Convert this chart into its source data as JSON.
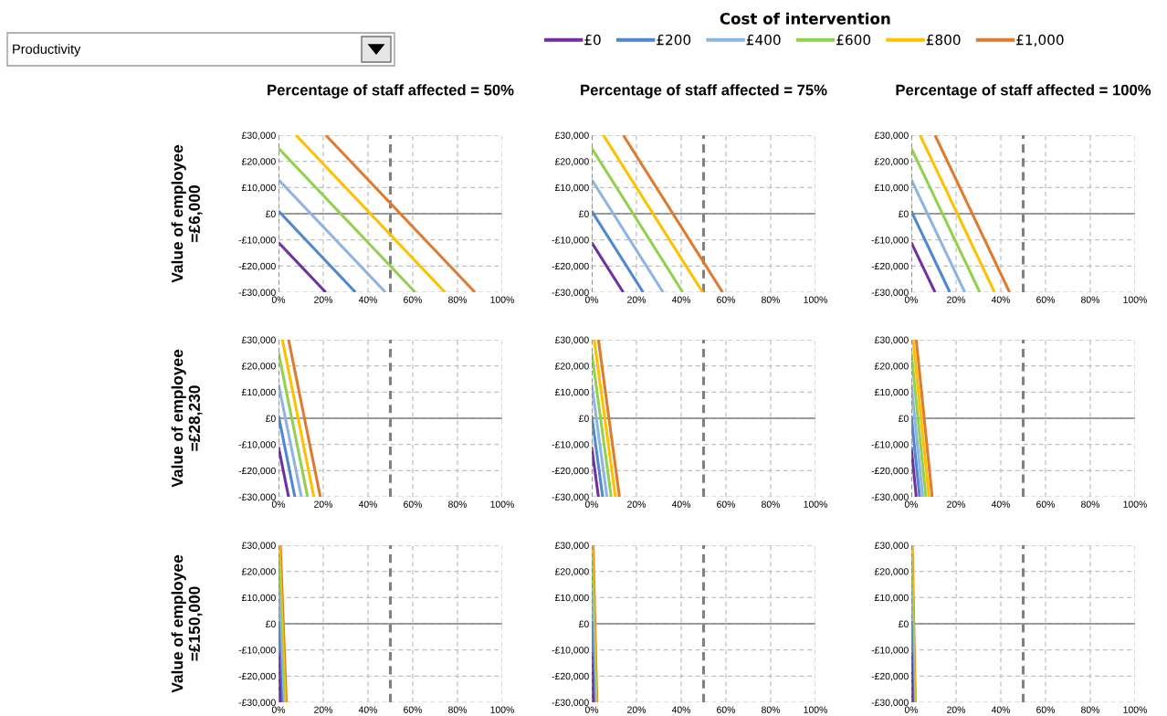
{
  "chart_data": [
    {
      "type": "line",
      "title": "Percentage of staff affected = 50%",
      "ylabel": "Value of employee\n=£6,000",
      "legend_title": "Cost of intervention",
      "legend": "top",
      "annotations": [
        "Productivity"
      ],
      "grid": true,
      "xlim": [
        0,
        100
      ],
      "ylim": [
        -30000,
        30000
      ],
      "xticks": [
        {
          "value": 0,
          "label": "0%"
        },
        {
          "value": 20,
          "label": "20%"
        },
        {
          "value": 40,
          "label": "40%"
        },
        {
          "value": 60,
          "label": "60%"
        },
        {
          "value": 80,
          "label": "80%"
        },
        {
          "value": 100,
          "label": "100%"
        }
      ],
      "yticks": [
        {
          "value": -30000,
          "label": "-£30,000"
        },
        {
          "value": -20000,
          "label": "-£20,000"
        },
        {
          "value": -10000,
          "label": "-£10,000"
        },
        {
          "value": 0,
          "label": "£0"
        },
        {
          "value": 10000,
          "label": "£10,000"
        },
        {
          "value": 20000,
          "label": "£20,000"
        },
        {
          "value": 30000,
          "label": "£30,000"
        }
      ],
      "ref_lines": [
        {
          "axis": "x",
          "value": 0,
          "color": "#808080",
          "line_style": "dashed"
        },
        {
          "axis": "x",
          "value": 50,
          "color": "#808080",
          "line_style": "dashed"
        }
      ],
      "series": [
        {
          "name": "£0",
          "color": "#7030a0",
          "x": [
            0,
            21.1
          ],
          "values": [
            -11000,
            -30000
          ]
        },
        {
          "name": "£200",
          "color": "#4f87d0",
          "x": [
            0,
            34.4
          ],
          "values": [
            1000,
            -30000
          ]
        },
        {
          "name": "£400",
          "color": "#8db4e2",
          "x": [
            0,
            47.8
          ],
          "values": [
            13000,
            -30000
          ]
        },
        {
          "name": "£600",
          "color": "#92d050",
          "x": [
            0,
            61.1
          ],
          "values": [
            25000,
            -30000
          ]
        },
        {
          "name": "£800",
          "color": "#ffc000",
          "x": [
            7.8,
            74.4
          ],
          "values": [
            30000,
            -30000
          ]
        },
        {
          "name": "£1,000",
          "color": "#dd7c31",
          "x": [
            21.1,
            87.8
          ],
          "values": [
            30000,
            -30000
          ]
        }
      ]
    },
    {
      "type": "line",
      "title": "Percentage of staff affected = 75%",
      "grid": true,
      "xlim": [
        0,
        100
      ],
      "ylim": [
        -30000,
        30000
      ],
      "xticks": [
        {
          "value": 0,
          "label": "0%"
        },
        {
          "value": 20,
          "label": "20%"
        },
        {
          "value": 40,
          "label": "40%"
        },
        {
          "value": 60,
          "label": "60%"
        },
        {
          "value": 80,
          "label": "80%"
        },
        {
          "value": 100,
          "label": "100%"
        }
      ],
      "yticks": [
        {
          "value": -30000,
          "label": "-£30,000"
        },
        {
          "value": -20000,
          "label": "-£20,000"
        },
        {
          "value": -10000,
          "label": "-£10,000"
        },
        {
          "value": 0,
          "label": "£0"
        },
        {
          "value": 10000,
          "label": "£10,000"
        },
        {
          "value": 20000,
          "label": "£20,000"
        },
        {
          "value": 30000,
          "label": "£30,000"
        }
      ],
      "ref_lines": [
        {
          "axis": "x",
          "value": 0,
          "color": "#808080",
          "line_style": "dashed"
        },
        {
          "axis": "x",
          "value": 50,
          "color": "#808080",
          "line_style": "dashed"
        }
      ],
      "series": [
        {
          "color": "#7030a0",
          "x": [
            0,
            14.1
          ],
          "values": [
            -11000,
            -30000
          ]
        },
        {
          "color": "#4f87d0",
          "x": [
            0,
            23.0
          ],
          "values": [
            1000,
            -30000
          ]
        },
        {
          "color": "#8db4e2",
          "x": [
            0,
            31.9
          ],
          "values": [
            13000,
            -30000
          ]
        },
        {
          "color": "#92d050",
          "x": [
            0,
            40.7
          ],
          "values": [
            25000,
            -30000
          ]
        },
        {
          "color": "#ffc000",
          "x": [
            5.2,
            49.6
          ],
          "values": [
            30000,
            -30000
          ]
        },
        {
          "color": "#dd7c31",
          "x": [
            14.1,
            58.5
          ],
          "values": [
            30000,
            -30000
          ]
        }
      ]
    },
    {
      "type": "line",
      "title": "Percentage of staff affected = 100%",
      "grid": true,
      "xlim": [
        0,
        100
      ],
      "ylim": [
        -30000,
        30000
      ],
      "xticks": [
        {
          "value": 0,
          "label": "0%"
        },
        {
          "value": 20,
          "label": "20%"
        },
        {
          "value": 40,
          "label": "40%"
        },
        {
          "value": 60,
          "label": "60%"
        },
        {
          "value": 80,
          "label": "80%"
        },
        {
          "value": 100,
          "label": "100%"
        }
      ],
      "yticks": [
        {
          "value": -30000,
          "label": "-£30,000"
        },
        {
          "value": -20000,
          "label": "-£20,000"
        },
        {
          "value": -10000,
          "label": "-£10,000"
        },
        {
          "value": 0,
          "label": "£0"
        },
        {
          "value": 10000,
          "label": "£10,000"
        },
        {
          "value": 20000,
          "label": "£20,000"
        },
        {
          "value": 30000,
          "label": "£30,000"
        }
      ],
      "ref_lines": [
        {
          "axis": "x",
          "value": 0,
          "color": "#808080",
          "line_style": "dashed"
        },
        {
          "axis": "x",
          "value": 50,
          "color": "#808080",
          "line_style": "dashed"
        }
      ],
      "series": [
        {
          "color": "#7030a0",
          "x": [
            0,
            10.6
          ],
          "values": [
            -11000,
            -30000
          ]
        },
        {
          "color": "#4f87d0",
          "x": [
            0,
            17.2
          ],
          "values": [
            1000,
            -30000
          ]
        },
        {
          "color": "#8db4e2",
          "x": [
            0,
            23.9
          ],
          "values": [
            13000,
            -30000
          ]
        },
        {
          "color": "#92d050",
          "x": [
            0,
            30.6
          ],
          "values": [
            25000,
            -30000
          ]
        },
        {
          "color": "#ffc000",
          "x": [
            3.9,
            37.2
          ],
          "values": [
            30000,
            -30000
          ]
        },
        {
          "color": "#dd7c31",
          "x": [
            10.6,
            43.9
          ],
          "values": [
            30000,
            -30000
          ]
        }
      ]
    },
    {
      "type": "line",
      "ylabel": "Value of employee\n=£28,230",
      "grid": true,
      "xlim": [
        0,
        100
      ],
      "ylim": [
        -30000,
        30000
      ],
      "xticks": [
        {
          "value": 0,
          "label": "0%"
        },
        {
          "value": 20,
          "label": "20%"
        },
        {
          "value": 40,
          "label": "40%"
        },
        {
          "value": 60,
          "label": "60%"
        },
        {
          "value": 80,
          "label": "80%"
        },
        {
          "value": 100,
          "label": "100%"
        }
      ],
      "yticks": [
        {
          "value": -30000,
          "label": "-£30,000"
        },
        {
          "value": -20000,
          "label": "-£20,000"
        },
        {
          "value": -10000,
          "label": "-£10,000"
        },
        {
          "value": 0,
          "label": "£0"
        },
        {
          "value": 10000,
          "label": "£10,000"
        },
        {
          "value": 20000,
          "label": "£20,000"
        },
        {
          "value": 30000,
          "label": "£30,000"
        }
      ],
      "ref_lines": [
        {
          "axis": "x",
          "value": 0,
          "color": "#808080",
          "line_style": "dashed"
        },
        {
          "axis": "x",
          "value": 50,
          "color": "#808080",
          "line_style": "dashed"
        }
      ],
      "series": [
        {
          "color": "#7030a0",
          "x": [
            0,
            4.5
          ],
          "values": [
            -11000,
            -30000
          ]
        },
        {
          "color": "#4f87d0",
          "x": [
            0,
            7.3
          ],
          "values": [
            1000,
            -30000
          ]
        },
        {
          "color": "#8db4e2",
          "x": [
            0,
            10.2
          ],
          "values": [
            13000,
            -30000
          ]
        },
        {
          "color": "#92d050",
          "x": [
            0,
            13.0
          ],
          "values": [
            25000,
            -30000
          ]
        },
        {
          "color": "#ffc000",
          "x": [
            1.7,
            15.8
          ],
          "values": [
            30000,
            -30000
          ]
        },
        {
          "color": "#dd7c31",
          "x": [
            4.5,
            18.7
          ],
          "values": [
            30000,
            -30000
          ]
        }
      ]
    },
    {
      "type": "line",
      "grid": true,
      "xlim": [
        0,
        100
      ],
      "ylim": [
        -30000,
        30000
      ],
      "xticks": [
        {
          "value": 0,
          "label": "0%"
        },
        {
          "value": 20,
          "label": "20%"
        },
        {
          "value": 40,
          "label": "40%"
        },
        {
          "value": 60,
          "label": "60%"
        },
        {
          "value": 80,
          "label": "80%"
        },
        {
          "value": 100,
          "label": "100%"
        }
      ],
      "yticks": [
        {
          "value": -30000,
          "label": "-£30,000"
        },
        {
          "value": -20000,
          "label": "-£20,000"
        },
        {
          "value": -10000,
          "label": "-£10,000"
        },
        {
          "value": 0,
          "label": "£0"
        },
        {
          "value": 10000,
          "label": "£10,000"
        },
        {
          "value": 20000,
          "label": "£20,000"
        },
        {
          "value": 30000,
          "label": "£30,000"
        }
      ],
      "ref_lines": [
        {
          "axis": "x",
          "value": 0,
          "color": "#808080",
          "line_style": "dashed"
        },
        {
          "axis": "x",
          "value": 50,
          "color": "#808080",
          "line_style": "dashed"
        }
      ],
      "series": [
        {
          "color": "#7030a0",
          "x": [
            0,
            3.0
          ],
          "values": [
            -11000,
            -30000
          ]
        },
        {
          "color": "#4f87d0",
          "x": [
            0,
            4.9
          ],
          "values": [
            1000,
            -30000
          ]
        },
        {
          "color": "#8db4e2",
          "x": [
            0,
            6.8
          ],
          "values": [
            13000,
            -30000
          ]
        },
        {
          "color": "#92d050",
          "x": [
            0,
            8.7
          ],
          "values": [
            25000,
            -30000
          ]
        },
        {
          "color": "#ffc000",
          "x": [
            1.1,
            10.6
          ],
          "values": [
            30000,
            -30000
          ]
        },
        {
          "color": "#dd7c31",
          "x": [
            3.0,
            12.4
          ],
          "values": [
            30000,
            -30000
          ]
        }
      ]
    },
    {
      "type": "line",
      "grid": true,
      "xlim": [
        0,
        100
      ],
      "ylim": [
        -30000,
        30000
      ],
      "xticks": [
        {
          "value": 0,
          "label": "0%"
        },
        {
          "value": 20,
          "label": "20%"
        },
        {
          "value": 40,
          "label": "40%"
        },
        {
          "value": 60,
          "label": "60%"
        },
        {
          "value": 80,
          "label": "80%"
        },
        {
          "value": 100,
          "label": "100%"
        }
      ],
      "yticks": [
        {
          "value": -30000,
          "label": "-£30,000"
        },
        {
          "value": -20000,
          "label": "-£20,000"
        },
        {
          "value": -10000,
          "label": "-£10,000"
        },
        {
          "value": 0,
          "label": "£0"
        },
        {
          "value": 10000,
          "label": "£10,000"
        },
        {
          "value": 20000,
          "label": "£20,000"
        },
        {
          "value": 30000,
          "label": "£30,000"
        }
      ],
      "ref_lines": [
        {
          "axis": "x",
          "value": 0,
          "color": "#808080",
          "line_style": "dashed"
        },
        {
          "axis": "x",
          "value": 50,
          "color": "#808080",
          "line_style": "dashed"
        }
      ],
      "series": [
        {
          "color": "#7030a0",
          "x": [
            0,
            2.2
          ],
          "values": [
            -11000,
            -30000
          ]
        },
        {
          "color": "#4f87d0",
          "x": [
            0,
            3.7
          ],
          "values": [
            1000,
            -30000
          ]
        },
        {
          "color": "#8db4e2",
          "x": [
            0,
            5.1
          ],
          "values": [
            13000,
            -30000
          ]
        },
        {
          "color": "#92d050",
          "x": [
            0,
            6.5
          ],
          "values": [
            25000,
            -30000
          ]
        },
        {
          "color": "#ffc000",
          "x": [
            0.8,
            7.9
          ],
          "values": [
            30000,
            -30000
          ]
        },
        {
          "color": "#dd7c31",
          "x": [
            2.2,
            9.3
          ],
          "values": [
            30000,
            -30000
          ]
        }
      ]
    },
    {
      "type": "line",
      "ylabel": "Value of employee\n=£150,000",
      "grid": true,
      "xlim": [
        0,
        100
      ],
      "ylim": [
        -30000,
        30000
      ],
      "xticks": [
        {
          "value": 0,
          "label": "0%"
        },
        {
          "value": 20,
          "label": "20%"
        },
        {
          "value": 40,
          "label": "40%"
        },
        {
          "value": 60,
          "label": "60%"
        },
        {
          "value": 80,
          "label": "80%"
        },
        {
          "value": 100,
          "label": "100%"
        }
      ],
      "yticks": [
        {
          "value": -30000,
          "label": "-£30,000"
        },
        {
          "value": -20000,
          "label": "-£20,000"
        },
        {
          "value": -10000,
          "label": "-£10,000"
        },
        {
          "value": 0,
          "label": "£0"
        },
        {
          "value": 10000,
          "label": "£10,000"
        },
        {
          "value": 20000,
          "label": "£20,000"
        },
        {
          "value": 30000,
          "label": "£30,000"
        }
      ],
      "ref_lines": [
        {
          "axis": "x",
          "value": 0,
          "color": "#808080",
          "line_style": "dashed"
        },
        {
          "axis": "x",
          "value": 50,
          "color": "#808080",
          "line_style": "dashed"
        }
      ],
      "series": [
        {
          "color": "#7030a0",
          "x": [
            0,
            0.8
          ],
          "values": [
            -11000,
            -30000
          ]
        },
        {
          "color": "#4f87d0",
          "x": [
            0,
            1.4
          ],
          "values": [
            1000,
            -30000
          ]
        },
        {
          "color": "#8db4e2",
          "x": [
            0,
            1.9
          ],
          "values": [
            13000,
            -30000
          ]
        },
        {
          "color": "#92d050",
          "x": [
            0,
            2.4
          ],
          "values": [
            25000,
            -30000
          ]
        },
        {
          "color": "#ffc000",
          "x": [
            0.3,
            3.0
          ],
          "values": [
            30000,
            -30000
          ]
        },
        {
          "color": "#dd7c31",
          "x": [
            0.8,
            3.5
          ],
          "values": [
            30000,
            -30000
          ]
        }
      ]
    },
    {
      "type": "line",
      "grid": true,
      "xlim": [
        0,
        100
      ],
      "ylim": [
        -30000,
        30000
      ],
      "xticks": [
        {
          "value": 0,
          "label": "0%"
        },
        {
          "value": 20,
          "label": "20%"
        },
        {
          "value": 40,
          "label": "40%"
        },
        {
          "value": 60,
          "label": "60%"
        },
        {
          "value": 80,
          "label": "80%"
        },
        {
          "value": 100,
          "label": "100%"
        }
      ],
      "yticks": [
        {
          "value": -30000,
          "label": "-£30,000"
        },
        {
          "value": -20000,
          "label": "-£20,000"
        },
        {
          "value": -10000,
          "label": "-£10,000"
        },
        {
          "value": 0,
          "label": "£0"
        },
        {
          "value": 10000,
          "label": "£10,000"
        },
        {
          "value": 20000,
          "label": "£20,000"
        },
        {
          "value": 30000,
          "label": "£30,000"
        }
      ],
      "ref_lines": [
        {
          "axis": "x",
          "value": 0,
          "color": "#808080",
          "line_style": "dashed"
        },
        {
          "axis": "x",
          "value": 50,
          "color": "#808080",
          "line_style": "dashed"
        }
      ],
      "series": [
        {
          "color": "#7030a0",
          "x": [
            0,
            0.6
          ],
          "values": [
            -11000,
            -30000
          ]
        },
        {
          "color": "#4f87d0",
          "x": [
            0,
            0.9
          ],
          "values": [
            1000,
            -30000
          ]
        },
        {
          "color": "#8db4e2",
          "x": [
            0,
            1.3
          ],
          "values": [
            13000,
            -30000
          ]
        },
        {
          "color": "#92d050",
          "x": [
            0,
            1.6
          ],
          "values": [
            25000,
            -30000
          ]
        },
        {
          "color": "#ffc000",
          "x": [
            0.2,
            2.0
          ],
          "values": [
            30000,
            -30000
          ]
        },
        {
          "color": "#dd7c31",
          "x": [
            0.6,
            2.3
          ],
          "values": [
            30000,
            -30000
          ]
        }
      ]
    },
    {
      "type": "line",
      "grid": true,
      "xlim": [
        0,
        100
      ],
      "ylim": [
        -30000,
        30000
      ],
      "xticks": [
        {
          "value": 0,
          "label": "0%"
        },
        {
          "value": 20,
          "label": "20%"
        },
        {
          "value": 40,
          "label": "40%"
        },
        {
          "value": 60,
          "label": "60%"
        },
        {
          "value": 80,
          "label": "80%"
        },
        {
          "value": 100,
          "label": "100%"
        }
      ],
      "yticks": [
        {
          "value": -30000,
          "label": "-£30,000"
        },
        {
          "value": -20000,
          "label": "-£20,000"
        },
        {
          "value": -10000,
          "label": "-£10,000"
        },
        {
          "value": 0,
          "label": "£0"
        },
        {
          "value": 10000,
          "label": "£10,000"
        },
        {
          "value": 20000,
          "label": "£20,000"
        },
        {
          "value": 30000,
          "label": "£30,000"
        }
      ],
      "ref_lines": [
        {
          "axis": "x",
          "value": 0,
          "color": "#808080",
          "line_style": "dashed"
        },
        {
          "axis": "x",
          "value": 50,
          "color": "#808080",
          "line_style": "dashed"
        }
      ],
      "series": [
        {
          "color": "#7030a0",
          "x": [
            0,
            0.4
          ],
          "values": [
            -11000,
            -30000
          ]
        },
        {
          "color": "#4f87d0",
          "x": [
            0,
            0.7
          ],
          "values": [
            1000,
            -30000
          ]
        },
        {
          "color": "#8db4e2",
          "x": [
            0,
            1.0
          ],
          "values": [
            13000,
            -30000
          ]
        },
        {
          "color": "#92d050",
          "x": [
            0,
            1.2
          ],
          "values": [
            25000,
            -30000
          ]
        },
        {
          "color": "#ffc000",
          "x": [
            0.2,
            1.5
          ],
          "values": [
            30000,
            -30000
          ]
        },
        {
          "color": "#dd7c31",
          "x": [
            0.4,
            1.8
          ],
          "values": [
            30000,
            -30000
          ]
        }
      ]
    }
  ]
}
